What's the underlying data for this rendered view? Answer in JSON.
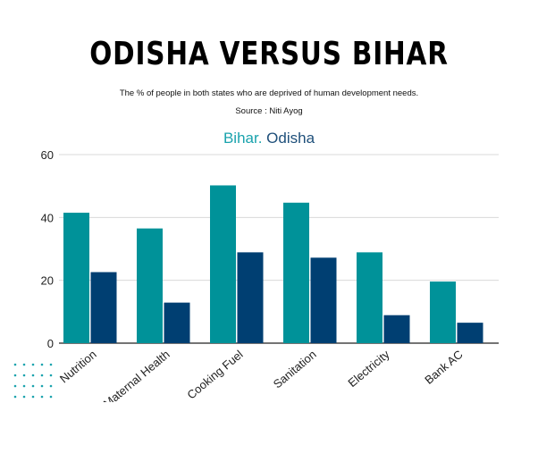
{
  "header": {
    "title": "ODISHA VERSUS BIHAR",
    "subtitle": "The % of people in both states who are deprived of  human development needs.",
    "source": "Source : Niti Ayog"
  },
  "colors": {
    "bihar": "#009299",
    "odisha": "#003f72",
    "grid": "#d9d9d9",
    "axis": "#222222",
    "decor_dots": "#1aa3ad"
  },
  "chart_data": {
    "type": "bar",
    "categories": [
      "Nutrition",
      "Maternal Health",
      "Cooking Fuel",
      "Sanitation",
      "Electricity",
      "Bank AC"
    ],
    "series": [
      {
        "name": "Bihar.",
        "values": [
          41.5,
          36.5,
          50.2,
          44.7,
          28.9,
          19.6
        ]
      },
      {
        "name": "Odisha",
        "values": [
          22.6,
          12.9,
          28.9,
          27.2,
          8.9,
          6.5
        ]
      }
    ],
    "yticks": [
      "0",
      "20",
      "40",
      "60"
    ],
    "ylim": [
      0,
      60
    ],
    "grid": true,
    "legend_position": "top-center"
  }
}
